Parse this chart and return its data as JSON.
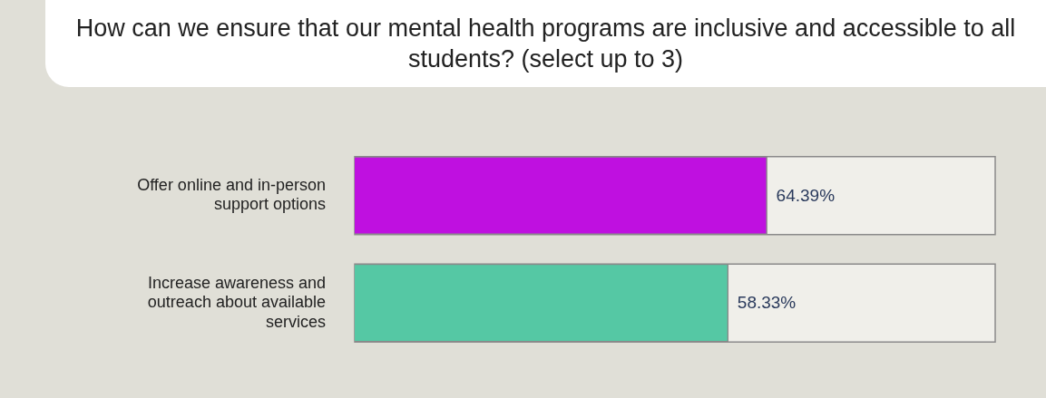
{
  "chart_data": {
    "type": "bar",
    "orientation": "horizontal",
    "title": "How can we ensure that our mental health programs are inclusive and accessible to all students? (select up to 3)",
    "categories": [
      "Offer online and in-person support options",
      "Increase awareness and outreach about available services"
    ],
    "values": [
      64.39,
      58.33
    ],
    "colors": [
      "#bf10e0",
      "#55c8a4"
    ],
    "value_labels": [
      "64.39%",
      "58.33%"
    ],
    "xlim": [
      0,
      100
    ],
    "tick_labels": false,
    "legend": false
  }
}
